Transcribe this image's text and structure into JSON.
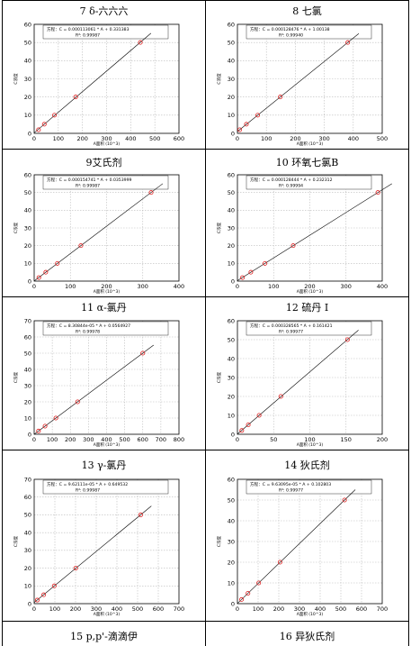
{
  "panels": [
    {
      "title": "7 δ-六六六",
      "eq": "方程：C = 0.000113061 * A + 0.331383",
      "r2": "R²: 0.99987",
      "xlabel": "A面积 (10^3)",
      "ylabel": "C浓度",
      "xmax": 600,
      "xstep": 100,
      "ymax": 60,
      "ystep": 10,
      "points": [
        [
          18,
          2
        ],
        [
          42,
          5
        ],
        [
          84,
          10
        ],
        [
          172,
          20
        ],
        [
          440,
          50
        ]
      ]
    },
    {
      "title": "8 七氯",
      "eq": "方程：C = 0.000128476 * A + 1.00138",
      "r2": "R²: 0.99940",
      "xlabel": "A面积 (10^3)",
      "ylabel": "C浓度",
      "xmax": 500,
      "xstep": 100,
      "ymax": 60,
      "ystep": 10,
      "points": [
        [
          8,
          2
        ],
        [
          31,
          5
        ],
        [
          70,
          10
        ],
        [
          148,
          20
        ],
        [
          381,
          50
        ]
      ]
    },
    {
      "title": "9艾氏剂",
      "eq": "方程：C = 0.000154741 * A + 0.0353999",
      "r2": "R²: 0.99987",
      "xlabel": "A面积 (10^3)",
      "ylabel": "C浓度",
      "xmax": 400,
      "xstep": 100,
      "ymax": 60,
      "ystep": 10,
      "points": [
        [
          13,
          2
        ],
        [
          32,
          5
        ],
        [
          64,
          10
        ],
        [
          129,
          20
        ],
        [
          323,
          50
        ]
      ]
    },
    {
      "title": "10 环氧七氯B",
      "eq": "方程：C = 0.000128444 * A + 0.232312",
      "r2": "R²: 0.99994",
      "xlabel": "A面积 (10^3)",
      "ylabel": "C浓度",
      "xmax": 400,
      "xstep": 100,
      "ymax": 60,
      "ystep": 10,
      "points": [
        [
          14,
          2
        ],
        [
          37,
          5
        ],
        [
          76,
          10
        ],
        [
          154,
          20
        ],
        [
          388,
          50
        ]
      ]
    },
    {
      "title": "11 α-氯丹",
      "eq": "方程：C = 8.30844e-05 * A + 0.0564927",
      "r2": "R²: 0.99978",
      "xlabel": "A面积 (10^3)",
      "ylabel": "C浓度",
      "xmax": 800,
      "xstep": 100,
      "ymax": 70,
      "ystep": 10,
      "points": [
        [
          24,
          2
        ],
        [
          60,
          5
        ],
        [
          120,
          10
        ],
        [
          240,
          20
        ],
        [
          600,
          50
        ]
      ]
    },
    {
      "title": "12 硫丹 I",
      "eq": "方程：C = 0.000328565 * A + 0.161421",
      "r2": "R²: 0.99977",
      "xlabel": "A面积 (10^3)",
      "ylabel": "C浓度",
      "xmax": 200,
      "xstep": 50,
      "ymax": 60,
      "ystep": 10,
      "points": [
        [
          6,
          2
        ],
        [
          15,
          5
        ],
        [
          30,
          10
        ],
        [
          60,
          20
        ],
        [
          152,
          50
        ]
      ]
    },
    {
      "title": "13 γ-氯丹",
      "eq": "方程：C = 9.62111e-05 * A + 0.649532",
      "r2": "R²: 0.99987",
      "xlabel": "A面积 (10^3)",
      "ylabel": "C浓度",
      "xmax": 700,
      "xstep": 100,
      "ymax": 70,
      "ystep": 10,
      "points": [
        [
          15,
          2
        ],
        [
          46,
          5
        ],
        [
          97,
          10
        ],
        [
          201,
          20
        ],
        [
          515,
          50
        ]
      ]
    },
    {
      "title": "14 狄氏剂",
      "eq": "方程：C = 9.63095e-05 * A + 0.102803",
      "r2": "R²: 0.99977",
      "xlabel": "A面积 (10^3)",
      "ylabel": "C浓度",
      "xmax": 700,
      "xstep": 100,
      "ymax": 60,
      "ystep": 10,
      "points": [
        [
          20,
          2
        ],
        [
          51,
          5
        ],
        [
          103,
          10
        ],
        [
          206,
          20
        ],
        [
          518,
          50
        ]
      ]
    },
    {
      "title": "15 p,p'-滴滴伊"
    },
    {
      "title": "16 异狄氏剂"
    }
  ]
}
